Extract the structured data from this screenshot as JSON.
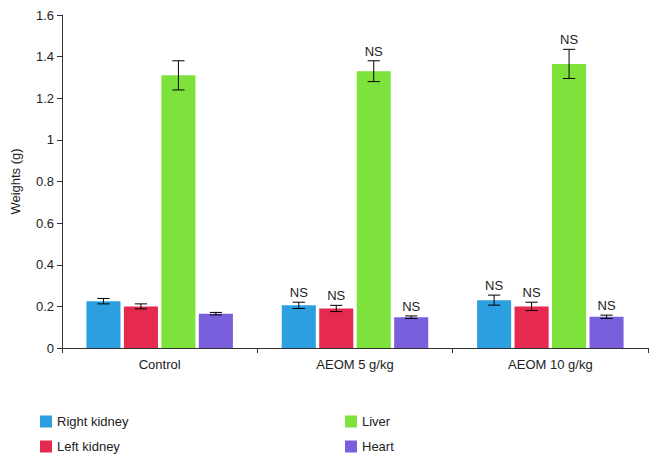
{
  "chart_data": {
    "type": "bar",
    "categories": [
      "Control",
      "AEOM 5 g/kg",
      "AEOM 10 g/kg"
    ],
    "y_label": "Weights (g)",
    "series": [
      {
        "name": "Right kidney",
        "color": "#2b9fe0",
        "values": [
          0.225,
          0.205,
          0.23
        ],
        "errors": [
          0.013,
          0.015,
          0.024
        ],
        "annotations": [
          null,
          "NS",
          "NS"
        ]
      },
      {
        "name": "Left kidney",
        "color": "#e5294f",
        "values": [
          0.2,
          0.19,
          0.2
        ],
        "errors": [
          0.012,
          0.015,
          0.02
        ],
        "annotations": [
          null,
          "NS",
          "NS"
        ]
      },
      {
        "name": "Liver",
        "color": "#7de23c",
        "values": [
          1.31,
          1.33,
          1.365
        ],
        "errors": [
          0.07,
          0.05,
          0.07
        ],
        "annotations": [
          null,
          "NS",
          "NS"
        ]
      },
      {
        "name": "Heart",
        "color": "#7a5fdc",
        "values": [
          0.165,
          0.148,
          0.15
        ],
        "errors": [
          0.006,
          0.006,
          0.008
        ],
        "annotations": [
          null,
          "NS",
          "NS"
        ]
      }
    ],
    "ylim": [
      0,
      1.6
    ],
    "yticks": [
      0,
      0.2,
      0.4,
      0.6,
      0.8,
      1,
      1.2,
      1.4,
      1.6
    ],
    "grid": false,
    "legend": "bottom"
  }
}
